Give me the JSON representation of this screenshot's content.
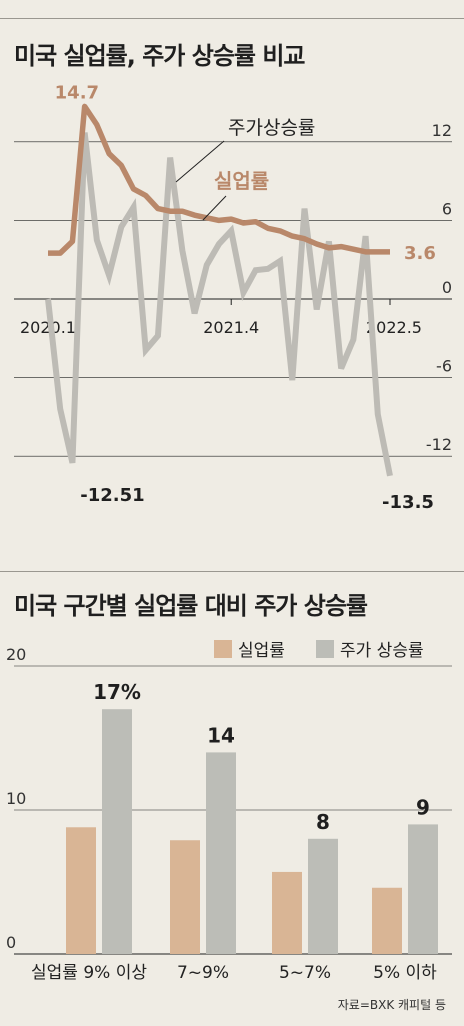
{
  "colors": {
    "background": "#efece4",
    "unemployment": "#b9886a",
    "stock": "#bdbbb5",
    "unemployment_bar": "#d9b595",
    "stock_bar": "#bcbdb7",
    "grid": "#1f1f1f"
  },
  "chart_data": [
    {
      "type": "line",
      "title": "미국 실업률, 주가 상승률 비교",
      "x_ticks": [
        "2020.1",
        "2021.4",
        "2022.5"
      ],
      "ylim": [
        -13.5,
        16
      ],
      "y_ticks": [
        "12",
        "6",
        "0",
        "-6",
        "-12"
      ],
      "grid": true,
      "series": [
        {
          "name": "실업률",
          "values": [
            3.5,
            3.5,
            4.4,
            14.7,
            13.3,
            11.1,
            10.2,
            8.4,
            7.9,
            6.9,
            6.7,
            6.7,
            6.4,
            6.2,
            6.0,
            6.1,
            5.8,
            5.9,
            5.4,
            5.2,
            4.8,
            4.6,
            4.2,
            3.9,
            4.0,
            3.8,
            3.6,
            3.6,
            3.6
          ],
          "start_label": "14.7",
          "end_label": "3.6"
        },
        {
          "name": "주가상승률",
          "values": [
            0.0,
            -8.4,
            -12.51,
            12.7,
            4.5,
            1.8,
            5.5,
            7.0,
            -3.9,
            -2.8,
            10.8,
            3.7,
            -1.1,
            2.6,
            4.2,
            5.2,
            0.5,
            2.2,
            2.3,
            2.9,
            -6.2,
            6.9,
            -0.8,
            4.4,
            -5.3,
            -3.1,
            4.8,
            -8.8,
            -13.5
          ],
          "min_label": "-12.51",
          "end_label": "-13.5"
        }
      ]
    },
    {
      "type": "bar",
      "title": "미국 구간별 실업률 대비 주가 상승률",
      "categories": [
        "실업률 9% 이상",
        "7~9%",
        "5~7%",
        "5% 이하"
      ],
      "ylim": [
        0,
        20
      ],
      "y_ticks": [
        "20",
        "10",
        "0"
      ],
      "grid": true,
      "legend": "top-right",
      "series": [
        {
          "name": "실업률",
          "values": [
            8.8,
            7.9,
            5.7,
            4.6
          ]
        },
        {
          "name": "주가 상승률",
          "values": [
            17,
            14,
            8,
            9
          ]
        }
      ],
      "data_labels": [
        "17%",
        "14",
        "8",
        "9"
      ]
    }
  ],
  "source": "자료=BXK 캐피털 등"
}
